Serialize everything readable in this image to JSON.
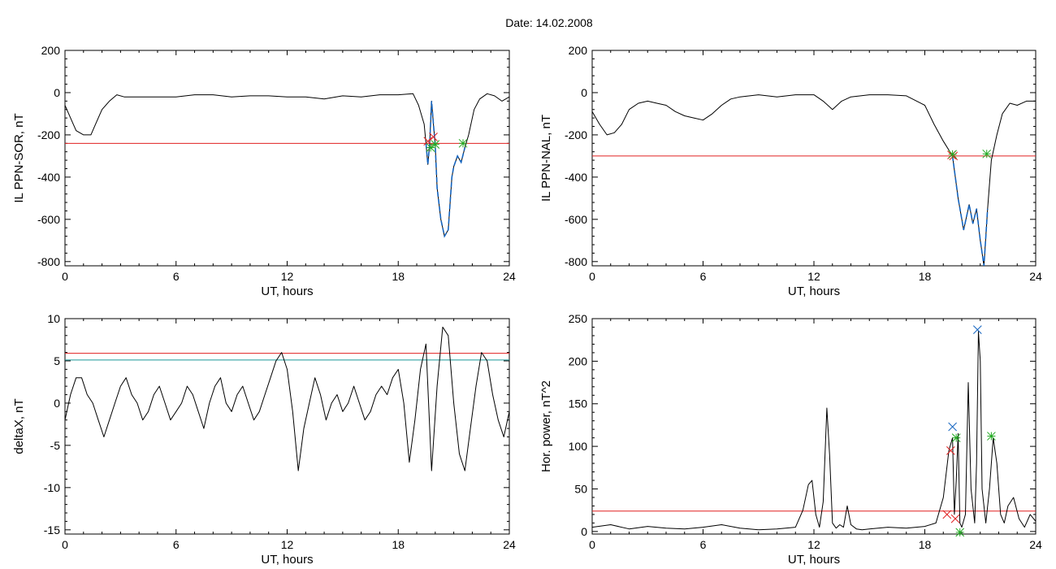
{
  "figure": {
    "title": "Date:  14.02.2008"
  },
  "chart_data": [
    {
      "id": "sor",
      "type": "line",
      "xlabel": "UT, hours",
      "ylabel": "IL PPN-SOR, nT",
      "xlim": [
        0,
        24
      ],
      "ylim": [
        -820,
        200
      ],
      "xticks": [
        0,
        6,
        12,
        18,
        24
      ],
      "yticks": [
        -800,
        -600,
        -400,
        -200,
        0,
        200
      ],
      "grid": false,
      "colors": {
        "main": "#000000",
        "threshold": "#e02020",
        "highlight": "#1565c0"
      },
      "series": [
        {
          "x": [
            0,
            0.3,
            0.6,
            1.0,
            1.4,
            1.7,
            2.0,
            2.4,
            2.8,
            3.2,
            4,
            5,
            6,
            7,
            8,
            9,
            10,
            11,
            12,
            13,
            14,
            15,
            16,
            17,
            18,
            18.8,
            19.1,
            19.4,
            19.5,
            19.6,
            19.7,
            19.8,
            19.9,
            20.0,
            20.1,
            20.3,
            20.5,
            20.7,
            20.9,
            21.0,
            21.2,
            21.4,
            21.6,
            21.8,
            22.1,
            22.4,
            22.8,
            23.2,
            23.6,
            24
          ],
          "values": [
            -60,
            -120,
            -180,
            -200,
            -200,
            -140,
            -80,
            -40,
            -10,
            -20,
            -20,
            -20,
            -20,
            -10,
            -10,
            -20,
            -15,
            -15,
            -20,
            -20,
            -30,
            -15,
            -20,
            -10,
            -10,
            -5,
            -60,
            -150,
            -240,
            -340,
            -240,
            -40,
            -150,
            -250,
            -450,
            -600,
            -680,
            -650,
            -400,
            -350,
            -300,
            -330,
            -260,
            -200,
            -80,
            -30,
            -5,
            -15,
            -40,
            -20
          ]
        }
      ],
      "highlight": {
        "x_range": [
          19.5,
          21.6
        ]
      },
      "threshold": -240,
      "markers": [
        {
          "x": 19.6,
          "y": -230,
          "color": "#e02020",
          "symbol": "x"
        },
        {
          "x": 19.9,
          "y": -210,
          "color": "#e02020",
          "symbol": "x"
        },
        {
          "x": 19.75,
          "y": -260,
          "color": "#22aa22",
          "symbol": "*"
        },
        {
          "x": 20.0,
          "y": -245,
          "color": "#22aa22",
          "symbol": "*"
        },
        {
          "x": 21.5,
          "y": -240,
          "color": "#22aa22",
          "symbol": "*"
        }
      ]
    },
    {
      "id": "nal",
      "type": "line",
      "xlabel": "UT, hours",
      "ylabel": "IL PPN-NAL, nT",
      "xlim": [
        0,
        24
      ],
      "ylim": [
        -820,
        200
      ],
      "xticks": [
        0,
        6,
        12,
        18,
        24
      ],
      "yticks": [
        -800,
        -600,
        -400,
        -200,
        0,
        200
      ],
      "grid": false,
      "colors": {
        "main": "#000000",
        "threshold": "#e02020",
        "highlight": "#1565c0"
      },
      "series": [
        {
          "x": [
            0,
            0.4,
            0.8,
            1.2,
            1.6,
            2.0,
            2.5,
            3.0,
            3.5,
            4,
            4.5,
            5,
            5.5,
            6,
            6.5,
            7,
            7.5,
            8,
            9,
            10,
            11,
            12,
            12.5,
            13,
            13.5,
            14,
            15,
            16,
            17,
            18,
            18.5,
            19.0,
            19.5,
            19.8,
            20.1,
            20.4,
            20.6,
            20.8,
            21.0,
            21.2,
            21.4,
            21.6,
            21.9,
            22.2,
            22.6,
            23.0,
            23.5,
            24
          ],
          "values": [
            -90,
            -150,
            -200,
            -190,
            -150,
            -80,
            -50,
            -40,
            -50,
            -60,
            -90,
            -110,
            -120,
            -130,
            -100,
            -60,
            -30,
            -20,
            -10,
            -20,
            -10,
            -10,
            -40,
            -80,
            -40,
            -20,
            -10,
            -10,
            -15,
            -60,
            -150,
            -230,
            -300,
            -500,
            -650,
            -530,
            -620,
            -550,
            -700,
            -820,
            -550,
            -320,
            -200,
            -100,
            -50,
            -60,
            -40,
            -40
          ]
        }
      ],
      "highlight": {
        "x_range": [
          19.5,
          21.4
        ]
      },
      "threshold": -300,
      "markers": [
        {
          "x": 19.45,
          "y": -295,
          "color": "#e02020",
          "symbol": "x"
        },
        {
          "x": 19.55,
          "y": -300,
          "color": "#e02020",
          "symbol": "x"
        },
        {
          "x": 19.5,
          "y": -292,
          "color": "#22aa22",
          "symbol": "*"
        },
        {
          "x": 21.35,
          "y": -290,
          "color": "#22aa22",
          "symbol": "*"
        }
      ]
    },
    {
      "id": "deltax",
      "type": "line",
      "xlabel": "UT, hours",
      "ylabel": "deltaX, nT",
      "xlim": [
        0,
        24
      ],
      "ylim": [
        -15.5,
        10
      ],
      "xticks": [
        0,
        6,
        12,
        18,
        24
      ],
      "yticks": [
        -15,
        -10,
        -5,
        0,
        5,
        10
      ],
      "grid": false,
      "colors": {
        "main": "#000000",
        "threshold": "#e02020",
        "threshold2": "#1a9999"
      },
      "series": [
        {
          "x": [
            0,
            0.3,
            0.6,
            0.9,
            1.2,
            1.5,
            1.8,
            2.1,
            2.4,
            2.7,
            3.0,
            3.3,
            3.6,
            3.9,
            4.2,
            4.5,
            4.8,
            5.1,
            5.4,
            5.7,
            6.0,
            6.3,
            6.6,
            6.9,
            7.2,
            7.5,
            7.8,
            8.1,
            8.4,
            8.7,
            9.0,
            9.3,
            9.6,
            9.9,
            10.2,
            10.5,
            10.8,
            11.1,
            11.4,
            11.7,
            12.0,
            12.3,
            12.6,
            12.9,
            13.2,
            13.5,
            13.8,
            14.1,
            14.4,
            14.7,
            15.0,
            15.3,
            15.6,
            15.9,
            16.2,
            16.5,
            16.8,
            17.1,
            17.4,
            17.7,
            18.0,
            18.3,
            18.6,
            18.9,
            19.2,
            19.5,
            19.8,
            20.1,
            20.4,
            20.7,
            21.0,
            21.3,
            21.6,
            21.9,
            22.2,
            22.5,
            22.8,
            23.1,
            23.4,
            23.7,
            24.0
          ],
          "values": [
            -2,
            1,
            3,
            3,
            1,
            0,
            -2,
            -4,
            -2,
            0,
            2,
            3,
            1,
            0,
            -2,
            -1,
            1,
            2,
            0,
            -2,
            -1,
            0,
            2,
            1,
            -1,
            -3,
            0,
            2,
            3,
            0,
            -1,
            1,
            2,
            0,
            -2,
            -1,
            1,
            3,
            5,
            6,
            4,
            -1,
            -8,
            -3,
            0,
            3,
            1,
            -2,
            0,
            1,
            -1,
            0,
            2,
            0,
            -2,
            -1,
            1,
            2,
            1,
            3,
            4,
            0,
            -7,
            -2,
            4,
            7,
            -8,
            2,
            9,
            8,
            0,
            -6,
            -8,
            -3,
            2,
            6,
            5,
            1,
            -2,
            -4,
            -1
          ]
        }
      ],
      "threshold": 5.9,
      "threshold2": 5.1
    },
    {
      "id": "power",
      "type": "line",
      "xlabel": "UT, hours",
      "ylabel": "Hor. power, nT^2",
      "xlim": [
        0,
        24
      ],
      "ylim": [
        -3,
        250
      ],
      "xticks": [
        0,
        6,
        12,
        18,
        24
      ],
      "yticks": [
        0,
        50,
        100,
        150,
        200,
        250
      ],
      "grid": false,
      "colors": {
        "main": "#000000",
        "threshold": "#e02020"
      },
      "series": [
        {
          "x": [
            0,
            1,
            2,
            3,
            4,
            5,
            6,
            7,
            8,
            9,
            10,
            11,
            11.4,
            11.7,
            11.9,
            12.1,
            12.3,
            12.5,
            12.7,
            12.85,
            13.0,
            13.2,
            13.4,
            13.6,
            13.8,
            14.0,
            14.3,
            14.6,
            15,
            16,
            17,
            18,
            18.6,
            19.0,
            19.3,
            19.5,
            19.6,
            19.7,
            19.8,
            19.9,
            20.0,
            20.2,
            20.35,
            20.5,
            20.7,
            20.8,
            20.9,
            21.0,
            21.1,
            21.3,
            21.5,
            21.7,
            21.9,
            22.1,
            22.3,
            22.5,
            22.8,
            23.1,
            23.4,
            23.7,
            24
          ],
          "values": [
            5,
            8,
            3,
            6,
            4,
            3,
            5,
            8,
            4,
            2,
            3,
            5,
            25,
            55,
            60,
            20,
            5,
            35,
            145,
            90,
            10,
            4,
            8,
            5,
            30,
            8,
            3,
            2,
            3,
            5,
            4,
            6,
            10,
            40,
            95,
            110,
            20,
            60,
            115,
            10,
            5,
            20,
            175,
            50,
            10,
            80,
            235,
            200,
            50,
            10,
            50,
            110,
            80,
            20,
            10,
            30,
            40,
            15,
            5,
            20,
            12
          ]
        }
      ],
      "threshold": 24,
      "markers": [
        {
          "x": 19.4,
          "y": 95,
          "color": "#e02020",
          "symbol": "x"
        },
        {
          "x": 19.2,
          "y": 20,
          "color": "#e02020",
          "symbol": "x"
        },
        {
          "x": 19.65,
          "y": 15,
          "color": "#e02020",
          "symbol": "x"
        },
        {
          "x": 19.5,
          "y": 123,
          "color": "#1565c0",
          "symbol": "x"
        },
        {
          "x": 20.85,
          "y": 237,
          "color": "#1565c0",
          "symbol": "x"
        },
        {
          "x": 19.7,
          "y": 110,
          "color": "#22aa22",
          "symbol": "*"
        },
        {
          "x": 21.6,
          "y": 112,
          "color": "#22aa22",
          "symbol": "*"
        },
        {
          "x": 19.9,
          "y": -1,
          "color": "#22aa22",
          "symbol": "*"
        }
      ]
    }
  ]
}
